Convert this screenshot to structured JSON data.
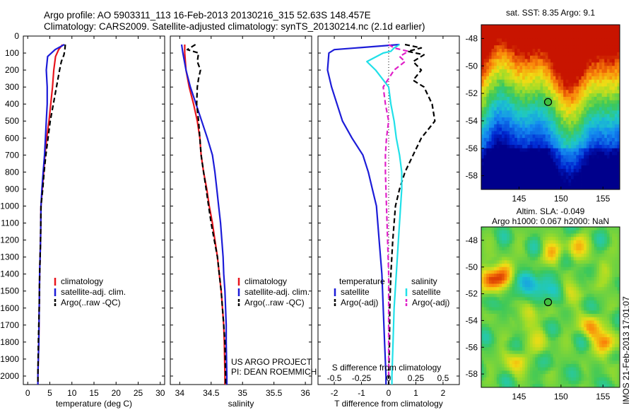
{
  "header": {
    "line1": "Argo profile: AO 5903311_113 16-Feb-2013 20130216_315 52.63S 148.457E",
    "line2": "Climatology: CARS2009. Satellite-adjusted climatology: synTS_20130214.nc (2.1d earlier)"
  },
  "colors": {
    "climatology": "#e8141c",
    "satellite": "#1c1cd8",
    "argo": "#000000",
    "salinity_satellite": "#20e0e8",
    "salinity_argo": "#e020c8"
  },
  "chart_data": [
    {
      "id": "temperature",
      "type": "line",
      "xlabel": "temperature (deg C)",
      "ylim": [
        2050,
        0
      ],
      "xlim": [
        -1,
        31
      ],
      "xticks": [
        0,
        5,
        10,
        15,
        20,
        25,
        30
      ],
      "yticks": [
        0,
        100,
        200,
        300,
        400,
        500,
        600,
        700,
        800,
        900,
        1000,
        1100,
        1200,
        1300,
        1400,
        1500,
        1600,
        1700,
        1800,
        1900,
        2000
      ],
      "legend": [
        "climatology",
        "satellite-adj. clim.",
        "Argo(..raw -QC)"
      ],
      "series": [
        {
          "name": "climatology",
          "color": "#e8141c",
          "style": "solid",
          "points": [
            [
              7.9,
              50
            ],
            [
              7.0,
              80
            ],
            [
              6.3,
              120
            ],
            [
              5.9,
              200
            ],
            [
              5.6,
              300
            ],
            [
              5.2,
              400
            ],
            [
              4.8,
              500
            ],
            [
              4.3,
              600
            ],
            [
              3.9,
              700
            ],
            [
              3.6,
              800
            ],
            [
              3.3,
              900
            ],
            [
              3.0,
              1000
            ],
            [
              2.9,
              1200
            ],
            [
              2.7,
              1400
            ],
            [
              2.6,
              1600
            ],
            [
              2.5,
              1800
            ],
            [
              2.3,
              2000
            ],
            [
              2.3,
              2050
            ]
          ]
        },
        {
          "name": "satellite-adj. clim.",
          "color": "#1c1cd8",
          "style": "solid",
          "points": [
            [
              8.3,
              50
            ],
            [
              6.2,
              80
            ],
            [
              4.5,
              120
            ],
            [
              4.2,
              200
            ],
            [
              4.4,
              300
            ],
            [
              4.4,
              400
            ],
            [
              4.2,
              500
            ],
            [
              4.0,
              600
            ],
            [
              3.8,
              700
            ],
            [
              3.5,
              800
            ],
            [
              3.2,
              900
            ],
            [
              3.0,
              1000
            ],
            [
              2.9,
              1200
            ],
            [
              2.7,
              1400
            ],
            [
              2.6,
              1600
            ],
            [
              2.5,
              1800
            ],
            [
              2.3,
              2000
            ],
            [
              2.3,
              2050
            ]
          ]
        },
        {
          "name": "Argo(..raw -QC)",
          "color": "#000000",
          "style": "dashed",
          "points": [
            [
              8.5,
              50
            ],
            [
              8.4,
              80
            ],
            [
              8.2,
              110
            ],
            [
              7.6,
              150
            ],
            [
              7.2,
              200
            ],
            [
              6.5,
              300
            ],
            [
              5.8,
              400
            ],
            [
              5.1,
              500
            ],
            [
              4.6,
              600
            ],
            [
              4.1,
              700
            ],
            [
              3.7,
              800
            ],
            [
              3.4,
              900
            ],
            [
              3.0,
              1000
            ],
            [
              2.9,
              1200
            ],
            [
              2.7,
              1400
            ],
            [
              2.6,
              1600
            ],
            [
              2.4,
              1800
            ],
            [
              2.3,
              2000
            ],
            [
              2.3,
              2050
            ]
          ]
        }
      ]
    },
    {
      "id": "salinity",
      "type": "line",
      "xlabel": "salinity",
      "ylim": [
        2050,
        0
      ],
      "xlim": [
        33.85,
        36.1
      ],
      "xticks": [
        34,
        34.5,
        35,
        35.5,
        36
      ],
      "xticklabels": [
        "34",
        "34.5",
        "35",
        "35.5",
        "36"
      ],
      "legend": [
        "climatology",
        "satellite-adj. clim.",
        "Argo(..raw -QC)"
      ],
      "annotation": [
        "US ARGO PROJECT",
        "PI: DEAN ROEMMICH"
      ],
      "series": [
        {
          "name": "climatology",
          "color": "#e8141c",
          "style": "solid",
          "points": [
            [
              34.08,
              50
            ],
            [
              34.08,
              100
            ],
            [
              34.1,
              200
            ],
            [
              34.15,
              300
            ],
            [
              34.22,
              400
            ],
            [
              34.28,
              500
            ],
            [
              34.32,
              600
            ],
            [
              34.34,
              700
            ],
            [
              34.38,
              800
            ],
            [
              34.43,
              900
            ],
            [
              34.47,
              1000
            ],
            [
              34.52,
              1100
            ],
            [
              34.56,
              1200
            ],
            [
              34.6,
              1300
            ],
            [
              34.63,
              1400
            ],
            [
              34.66,
              1500
            ],
            [
              34.68,
              1600
            ],
            [
              34.7,
              1700
            ],
            [
              34.71,
              1800
            ],
            [
              34.72,
              2000
            ],
            [
              34.72,
              2050
            ]
          ]
        },
        {
          "name": "satellite-adj. clim.",
          "color": "#1c1cd8",
          "style": "solid",
          "points": [
            [
              34.03,
              50
            ],
            [
              34.05,
              100
            ],
            [
              34.1,
              200
            ],
            [
              34.17,
              300
            ],
            [
              34.26,
              400
            ],
            [
              34.35,
              500
            ],
            [
              34.44,
              600
            ],
            [
              34.52,
              700
            ],
            [
              34.56,
              800
            ],
            [
              34.59,
              900
            ],
            [
              34.62,
              1000
            ],
            [
              34.65,
              1100
            ],
            [
              34.67,
              1200
            ],
            [
              34.69,
              1300
            ],
            [
              34.7,
              1400
            ],
            [
              34.72,
              1500
            ],
            [
              34.73,
              1600
            ],
            [
              34.74,
              1700
            ],
            [
              34.74,
              1800
            ],
            [
              34.75,
              2000
            ],
            [
              34.75,
              2050
            ]
          ]
        },
        {
          "name": "Argo(..raw -QC)",
          "color": "#000000",
          "style": "dashed",
          "points": [
            [
              34.25,
              50
            ],
            [
              34.12,
              80
            ],
            [
              34.3,
              100
            ],
            [
              34.28,
              150
            ],
            [
              34.33,
              200
            ],
            [
              34.3,
              250
            ],
            [
              34.28,
              300
            ],
            [
              34.27,
              400
            ],
            [
              34.3,
              500
            ],
            [
              34.32,
              600
            ],
            [
              34.34,
              700
            ],
            [
              34.38,
              800
            ],
            [
              34.42,
              900
            ],
            [
              34.46,
              1000
            ],
            [
              34.5,
              1100
            ],
            [
              34.55,
              1200
            ],
            [
              34.6,
              1300
            ],
            [
              34.63,
              1400
            ],
            [
              34.66,
              1500
            ],
            [
              34.68,
              1600
            ],
            [
              34.7,
              1700
            ],
            [
              34.72,
              1800
            ],
            [
              34.73,
              2000
            ],
            [
              34.73,
              2050
            ]
          ]
        }
      ]
    },
    {
      "id": "difference",
      "type": "line",
      "xlabel": "T difference from climatology",
      "xlabel2": "S difference from climatology",
      "ylim": [
        2050,
        0
      ],
      "xlim": [
        -2.6,
        2.6
      ],
      "xticks": [
        -2,
        -1,
        0,
        1,
        2
      ],
      "sticks": [
        -0.5,
        -0.25,
        0,
        0.25,
        0.5
      ],
      "sticklabels": [
        "-0.5",
        "-0.25",
        "0",
        "0.25",
        "0.5"
      ],
      "legend_titles": [
        "temperature",
        "salinity"
      ],
      "legend_left": [
        "satellite",
        "Argo(-adj)"
      ],
      "legend_right": [
        "satellite",
        "Argo(-adj)"
      ],
      "series": [
        {
          "name": "T satellite",
          "color": "#1c1cd8",
          "style": "solid",
          "axis": "T",
          "points": [
            [
              0.4,
              50
            ],
            [
              -1.2,
              70
            ],
            [
              -2.0,
              80
            ],
            [
              -2.2,
              100
            ],
            [
              -2.25,
              200
            ],
            [
              -2.1,
              300
            ],
            [
              -1.9,
              400
            ],
            [
              -1.7,
              500
            ],
            [
              -1.35,
              600
            ],
            [
              -0.95,
              700
            ],
            [
              -0.75,
              800
            ],
            [
              -0.6,
              900
            ],
            [
              -0.45,
              1000
            ],
            [
              -0.35,
              1200
            ],
            [
              -0.25,
              1400
            ],
            [
              -0.2,
              1600
            ],
            [
              -0.15,
              1800
            ],
            [
              -0.1,
              2000
            ],
            [
              -0.1,
              2050
            ]
          ]
        },
        {
          "name": "T Argo(-adj)",
          "color": "#000000",
          "style": "dashed",
          "axis": "T",
          "points": [
            [
              0.6,
              50
            ],
            [
              1.2,
              70
            ],
            [
              0.7,
              90
            ],
            [
              1.3,
              110
            ],
            [
              0.9,
              150
            ],
            [
              1.2,
              200
            ],
            [
              0.9,
              260
            ],
            [
              1.3,
              300
            ],
            [
              1.6,
              400
            ],
            [
              1.7,
              500
            ],
            [
              1.2,
              600
            ],
            [
              0.9,
              700
            ],
            [
              0.6,
              800
            ],
            [
              0.4,
              900
            ],
            [
              0.25,
              1000
            ],
            [
              0.15,
              1200
            ],
            [
              0.08,
              1400
            ],
            [
              0.04,
              1600
            ],
            [
              0.03,
              1800
            ],
            [
              0.0,
              2000
            ],
            [
              0.0,
              2050
            ]
          ]
        },
        {
          "name": "S satellite",
          "color": "#20e0e8",
          "style": "solid",
          "axis": "S",
          "points": [
            [
              0.1,
              50
            ],
            [
              0.05,
              70
            ],
            [
              0.02,
              90
            ],
            [
              -0.05,
              100
            ],
            [
              -0.2,
              150
            ],
            [
              -0.12,
              200
            ],
            [
              0.0,
              300
            ],
            [
              0.02,
              400
            ],
            [
              0.05,
              500
            ],
            [
              0.07,
              600
            ],
            [
              0.1,
              700
            ],
            [
              0.12,
              800
            ],
            [
              0.12,
              900
            ],
            [
              0.11,
              1000
            ],
            [
              0.09,
              1200
            ],
            [
              0.07,
              1400
            ],
            [
              0.05,
              1600
            ],
            [
              0.04,
              1800
            ],
            [
              0.03,
              2000
            ],
            [
              0.03,
              2050
            ]
          ]
        },
        {
          "name": "S Argo(-adj)",
          "color": "#e020c8",
          "style": "dashed",
          "axis": "S",
          "points": [
            [
              0.0,
              50
            ],
            [
              0.05,
              70
            ],
            [
              0.18,
              90
            ],
            [
              0.1,
              120
            ],
            [
              0.15,
              150
            ],
            [
              0.05,
              200
            ],
            [
              -0.05,
              300
            ],
            [
              -0.03,
              400
            ],
            [
              0.0,
              500
            ],
            [
              -0.02,
              600
            ],
            [
              -0.03,
              700
            ],
            [
              -0.03,
              800
            ],
            [
              -0.02,
              1000
            ],
            [
              -0.01,
              1200
            ],
            [
              0.0,
              1400
            ],
            [
              0.0,
              1600
            ],
            [
              0.0,
              1800
            ],
            [
              0.0,
              2000
            ]
          ]
        }
      ]
    },
    {
      "id": "sst_map",
      "type": "heatmap",
      "title": "sat. SST: 8.35 Argo: 9.1",
      "xlim": [
        140.5,
        157
      ],
      "ylim": [
        -59,
        -47
      ],
      "xticks": [
        145,
        150,
        155
      ],
      "yticks": [
        -48,
        -50,
        -52,
        -54,
        -56,
        -58
      ],
      "marker": [
        148.457,
        -52.63
      ]
    },
    {
      "id": "sla_map",
      "type": "heatmap",
      "title": "Altim. SLA: -0.049",
      "subtitle": "Argo h1000: 0.067 h2000: NaN",
      "xlim": [
        140.5,
        157
      ],
      "ylim": [
        -59,
        -47
      ],
      "xticks": [
        145,
        150,
        155
      ],
      "yticks": [
        -48,
        -50,
        -52,
        -54,
        -56,
        -58
      ],
      "marker": [
        148.457,
        -52.63
      ],
      "side_label": "IMOS 21-Feb-2013 17:01:07"
    }
  ]
}
